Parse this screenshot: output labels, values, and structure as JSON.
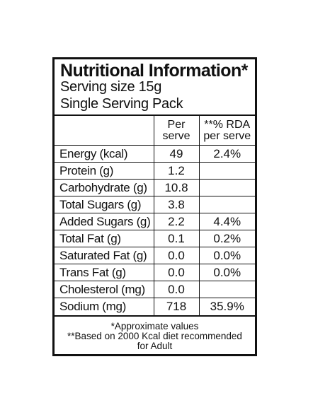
{
  "label": {
    "title": "Nutritional Information*",
    "serving_size": "Serving size 15g",
    "pack": "Single Serving Pack"
  },
  "table": {
    "headers": {
      "per_serve_line1": "Per",
      "per_serve_line2": "serve",
      "rda_line1": "**% RDA",
      "rda_line2": "per serve"
    },
    "rows": [
      {
        "name": "Energy (kcal)",
        "per_serve": "49",
        "rda": "2.4%"
      },
      {
        "name": "Protein (g)",
        "per_serve": "1.2",
        "rda": ""
      },
      {
        "name": "Carbohydrate (g)",
        "per_serve": "10.8",
        "rda": ""
      },
      {
        "name": "Total Sugars (g)",
        "per_serve": "3.8",
        "rda": ""
      },
      {
        "name": "Added Sugars (g)",
        "per_serve": "2.2",
        "rda": "4.4%"
      },
      {
        "name": "Total Fat (g)",
        "per_serve": "0.1",
        "rda": "0.2%"
      },
      {
        "name": "Saturated Fat (g)",
        "per_serve": "0.0",
        "rda": "0.0%"
      },
      {
        "name": "Trans Fat (g)",
        "per_serve": "0.0",
        "rda": "0.0%"
      },
      {
        "name": "Cholesterol (mg)",
        "per_serve": "0.0",
        "rda": ""
      },
      {
        "name": "Sodium (mg)",
        "per_serve": "718",
        "rda": "35.9%"
      }
    ]
  },
  "footnotes": {
    "approx": "*Approximate values",
    "rda_basis_line1": "**Based on 2000 Kcal diet recommended",
    "rda_basis_line2": "for Adult"
  }
}
